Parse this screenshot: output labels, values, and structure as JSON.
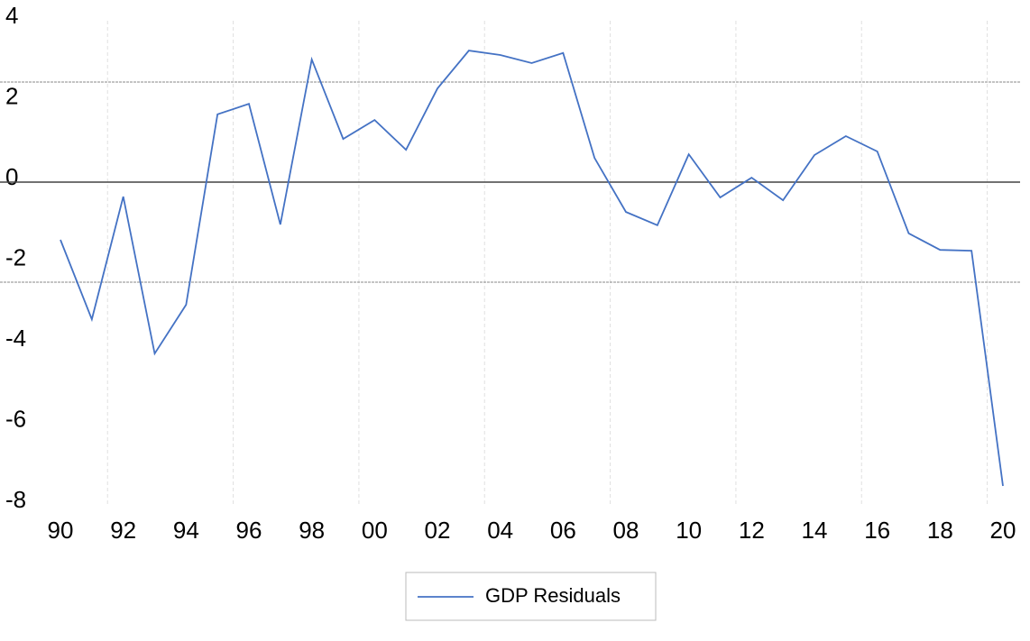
{
  "chart_data": {
    "type": "line",
    "categories": [
      "90",
      null,
      "92",
      null,
      "94",
      null,
      "96",
      null,
      "98",
      null,
      "00",
      null,
      "02",
      null,
      "04",
      null,
      "06",
      null,
      "08",
      null,
      "10",
      null,
      "12",
      null,
      "14",
      null,
      "16",
      null,
      "18",
      null,
      "20"
    ],
    "series": [
      {
        "name": "GDP Residuals",
        "color": "#4472c4",
        "values": [
          -1.43,
          -3.4,
          -0.36,
          -4.25,
          -3.04,
          1.68,
          1.94,
          -1.05,
          3.04,
          1.07,
          1.54,
          0.8,
          2.32,
          3.26,
          3.15,
          2.95,
          3.2,
          0.6,
          -0.74,
          -1.07,
          0.69,
          -0.38,
          0.11,
          -0.45,
          0.67,
          1.14,
          0.76,
          -1.27,
          -1.68,
          -1.7,
          -7.53
        ]
      }
    ],
    "ylim": [
      -8,
      4
    ],
    "yticks": [
      -8,
      -6,
      -4,
      -2,
      0,
      2,
      4
    ],
    "reference_lines": [
      2.48,
      -2.48
    ],
    "legend": "bottom"
  }
}
